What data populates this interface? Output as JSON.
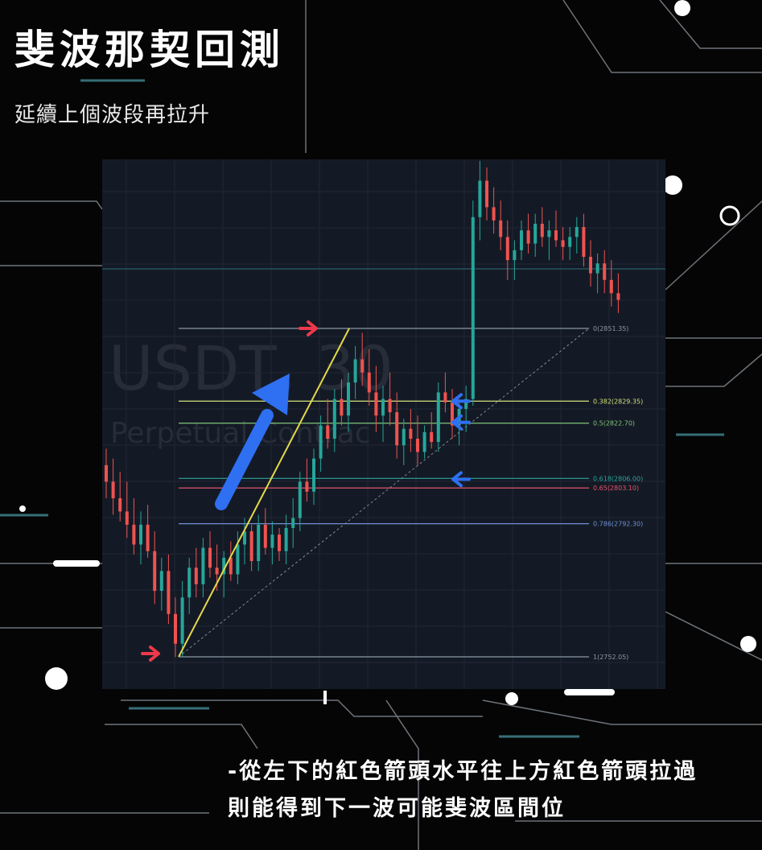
{
  "header": {
    "title": "斐波那契回測",
    "subtitle": "延續上個波段再拉升"
  },
  "watermark": {
    "symbol": "USDT, 30",
    "contract": "Perpetual Contrac"
  },
  "caption": {
    "line1": "-從左下的紅色箭頭水平往上方紅色箭頭拉過",
    "line2": "則能得到下一波可能斐波區間位"
  },
  "colors": {
    "up_candle": "#26a69a",
    "down_candle": "#ef5350",
    "fib_line": "#e6d84a",
    "arrow_red": "#f0384b",
    "arrow_blue": "#2f6ff2",
    "panel_bg": "#141a25"
  },
  "chart_data": {
    "type": "candlestick",
    "tool": "fibonacci-retracement",
    "fib_levels": [
      {
        "label": "0(2851.35)",
        "ratio": 0,
        "price": 2851.35,
        "color": "#8a97a6"
      },
      {
        "label": "0.382(2829.35)",
        "ratio": 0.382,
        "price": 2829.35,
        "color": "#cfe07a"
      },
      {
        "label": "0.5(2822.70)",
        "ratio": 0.5,
        "price": 2822.7,
        "color": "#7fc47a"
      },
      {
        "label": "0.618(2806.00)",
        "ratio": 0.618,
        "price": 2806.0,
        "color": "#2ba39a"
      },
      {
        "label": "0.65(2803.10)",
        "ratio": 0.65,
        "price": 2803.1,
        "color": "#e0536b"
      },
      {
        "label": "0.786(2792.30)",
        "ratio": 0.786,
        "price": 2792.3,
        "color": "#6f8fd6"
      },
      {
        "label": "1(2752.05)",
        "ratio": 1,
        "price": 2752.05,
        "color": "#8a97a6"
      }
    ],
    "candles": [
      [
        2810,
        2815,
        2800,
        2805
      ],
      [
        2805,
        2812,
        2795,
        2800
      ],
      [
        2800,
        2808,
        2793,
        2796
      ],
      [
        2796,
        2805,
        2788,
        2792
      ],
      [
        2792,
        2800,
        2783,
        2786
      ],
      [
        2786,
        2796,
        2780,
        2792
      ],
      [
        2792,
        2798,
        2782,
        2784
      ],
      [
        2784,
        2790,
        2768,
        2772
      ],
      [
        2772,
        2782,
        2766,
        2778
      ],
      [
        2778,
        2783,
        2762,
        2765
      ],
      [
        2765,
        2770,
        2752,
        2756
      ],
      [
        2756,
        2775,
        2752,
        2770
      ],
      [
        2770,
        2782,
        2765,
        2779
      ],
      [
        2779,
        2785,
        2770,
        2774
      ],
      [
        2774,
        2788,
        2770,
        2785
      ],
      [
        2785,
        2790,
        2776,
        2779
      ],
      [
        2779,
        2786,
        2772,
        2777
      ],
      [
        2777,
        2784,
        2770,
        2782
      ],
      [
        2782,
        2787,
        2775,
        2777
      ],
      [
        2777,
        2790,
        2774,
        2786
      ],
      [
        2786,
        2794,
        2780,
        2790
      ],
      [
        2790,
        2792,
        2778,
        2781
      ],
      [
        2781,
        2795,
        2778,
        2792
      ],
      [
        2792,
        2797,
        2783,
        2785
      ],
      [
        2785,
        2793,
        2780,
        2789
      ],
      [
        2789,
        2791,
        2781,
        2784
      ],
      [
        2784,
        2795,
        2780,
        2791
      ],
      [
        2791,
        2800,
        2785,
        2794
      ],
      [
        2794,
        2808,
        2790,
        2805
      ],
      [
        2805,
        2812,
        2799,
        2802
      ],
      [
        2802,
        2815,
        2798,
        2812
      ],
      [
        2812,
        2825,
        2808,
        2822
      ],
      [
        2822,
        2830,
        2815,
        2818
      ],
      [
        2818,
        2833,
        2814,
        2830
      ],
      [
        2830,
        2836,
        2822,
        2825
      ],
      [
        2825,
        2838,
        2820,
        2835
      ],
      [
        2835,
        2846,
        2830,
        2842
      ],
      [
        2842,
        2850,
        2834,
        2838
      ],
      [
        2838,
        2845,
        2828,
        2832
      ],
      [
        2832,
        2840,
        2820,
        2825
      ],
      [
        2825,
        2834,
        2817,
        2830
      ],
      [
        2830,
        2838,
        2822,
        2826
      ],
      [
        2826,
        2832,
        2812,
        2816
      ],
      [
        2816,
        2824,
        2810,
        2821
      ],
      [
        2821,
        2827,
        2814,
        2818
      ],
      [
        2818,
        2825,
        2810,
        2814
      ],
      [
        2814,
        2822,
        2812,
        2820
      ],
      [
        2820,
        2826,
        2815,
        2817
      ],
      [
        2817,
        2835,
        2814,
        2832
      ],
      [
        2832,
        2838,
        2826,
        2829
      ],
      [
        2829,
        2833,
        2818,
        2822
      ],
      [
        2822,
        2830,
        2816,
        2827
      ],
      [
        2827,
        2834,
        2820,
        2830
      ],
      [
        2830,
        2890,
        2828,
        2885
      ],
      [
        2885,
        2902,
        2878,
        2896
      ],
      [
        2896,
        2900,
        2884,
        2888
      ],
      [
        2888,
        2894,
        2880,
        2884
      ],
      [
        2884,
        2890,
        2875,
        2879
      ],
      [
        2879,
        2884,
        2866,
        2872
      ],
      [
        2872,
        2878,
        2866,
        2875
      ],
      [
        2875,
        2884,
        2872,
        2881
      ],
      [
        2881,
        2886,
        2874,
        2877
      ],
      [
        2877,
        2886,
        2873,
        2883
      ],
      [
        2883,
        2888,
        2876,
        2879
      ],
      [
        2879,
        2884,
        2872,
        2881
      ],
      [
        2881,
        2887,
        2876,
        2878
      ],
      [
        2878,
        2882,
        2872,
        2876
      ],
      [
        2876,
        2882,
        2872,
        2879
      ],
      [
        2879,
        2885,
        2874,
        2882
      ],
      [
        2882,
        2886,
        2870,
        2873
      ],
      [
        2873,
        2878,
        2864,
        2868
      ],
      [
        2868,
        2874,
        2862,
        2871
      ],
      [
        2871,
        2875,
        2862,
        2866
      ],
      [
        2866,
        2872,
        2858,
        2862
      ],
      [
        2862,
        2868,
        2856,
        2860
      ]
    ]
  }
}
